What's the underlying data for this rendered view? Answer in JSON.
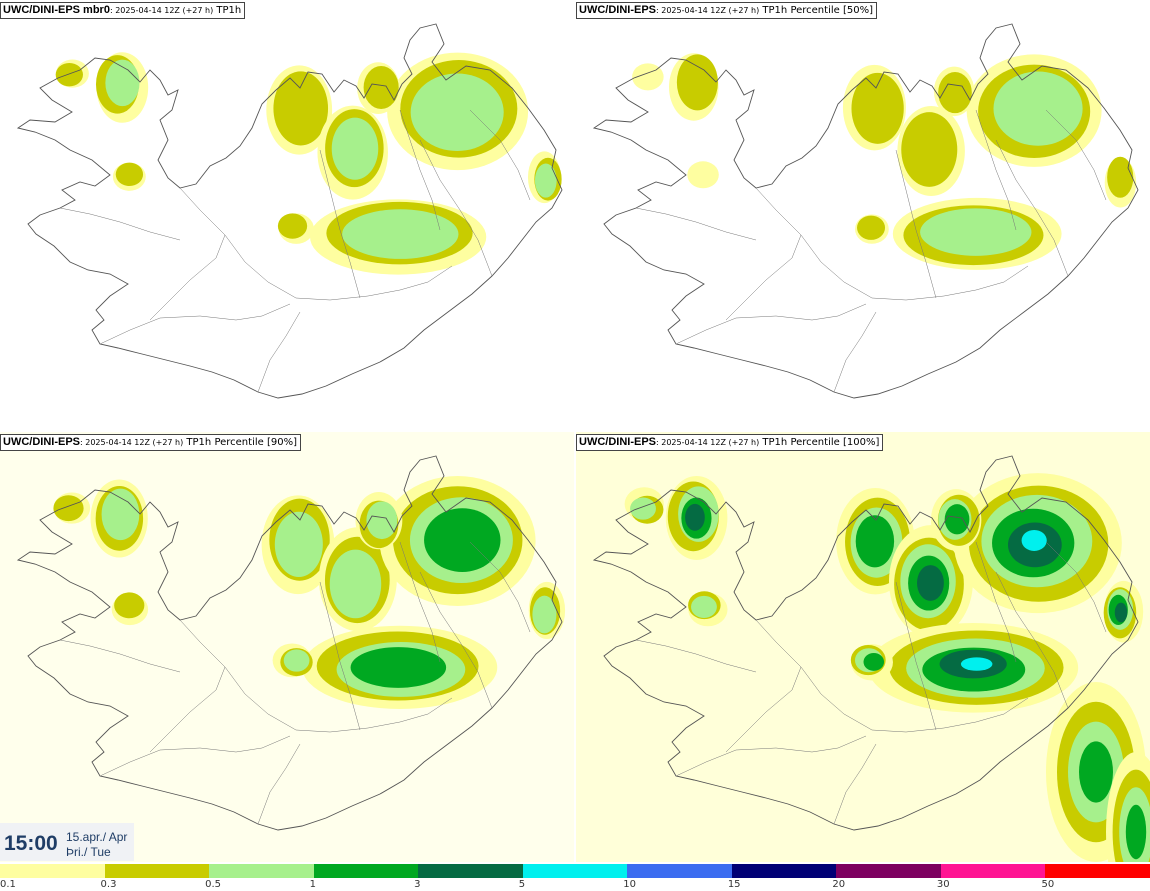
{
  "panels": [
    {
      "id": "tl",
      "model": "UWC/DINI-EPS mbr0",
      "run": "2025-04-14 12Z (+27 h)",
      "field": "TP1h",
      "intensity": 0.55
    },
    {
      "id": "tr",
      "model": "UWC/DINI-EPS",
      "run": "2025-04-14 12Z (+27 h)",
      "field": "TP1h Percentile [50%]",
      "intensity": 0.45
    },
    {
      "id": "bl",
      "model": "UWC/DINI-EPS",
      "run": "2025-04-14 12Z (+27 h)",
      "field": "TP1h Percentile [90%]",
      "intensity": 0.8
    },
    {
      "id": "br",
      "model": "UWC/DINI-EPS",
      "run": "2025-04-14 12Z (+27 h)",
      "field": "TP1h Percentile [100%]",
      "intensity": 1.0
    }
  ],
  "time": {
    "clock": "15:00",
    "date": "15.apr./ Apr",
    "weekday": "Þri./ Tue"
  },
  "legend": {
    "labels": [
      "0.1",
      "0.3",
      "0.5",
      "1",
      "3",
      "5",
      "10",
      "15",
      "20",
      "30",
      "50"
    ],
    "colors": [
      "#fefea0",
      "#c8cc00",
      "#a6f08c",
      "#00a821",
      "#056b43",
      "#00f0ee",
      "#3b6cf0",
      "#000075",
      "#7d0060",
      "#ff1493",
      "#ff0000"
    ]
  },
  "colors": {
    "land_line": "#555555",
    "background": "#ffffff",
    "title_text": "#1f3d66"
  }
}
